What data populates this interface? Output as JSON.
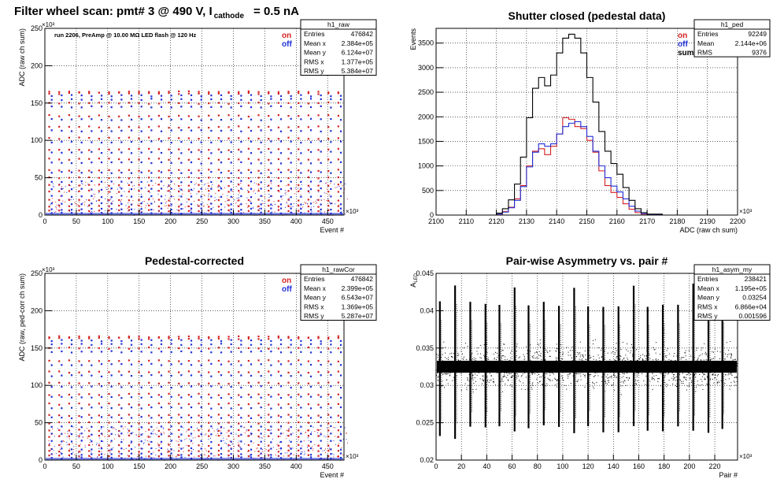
{
  "page": {
    "title": "Filter wheel scan: pmt#   3 @   490 V, I",
    "title_sub": "cathode",
    "title_tail": "= 0.5 nA"
  },
  "colors": {
    "on": "#d62020",
    "off": "#1f2fd6",
    "sum": "#000000",
    "grid": "#000000"
  },
  "chart_data": [
    {
      "id": "raw",
      "type": "scatter",
      "title": "",
      "annotation": "run 2206, PreAmp @ 10.00 MΩ LED flash @  120 Hz",
      "xlabel": "Event #",
      "ylabel": "ADC (raw ch sum)",
      "x_multiplier": "×10³",
      "y_multiplier": "×10³",
      "xlim": [
        0,
        476
      ],
      "ylim": [
        0,
        250
      ],
      "xticks": [
        0,
        50,
        100,
        150,
        200,
        250,
        300,
        350,
        400,
        450
      ],
      "yticks": [
        0,
        50,
        100,
        150,
        200,
        250
      ],
      "legend": [
        {
          "label": "on",
          "color": "#d62020"
        },
        {
          "label": "off",
          "color": "#1f2fd6"
        }
      ],
      "levels_on": [
        165,
        163,
        150,
        133,
        118,
        103,
        88,
        75,
        60,
        50,
        40,
        32,
        20,
        12,
        6
      ],
      "levels_off": [
        160,
        155,
        145,
        128,
        113,
        98,
        84,
        70,
        57,
        45,
        35,
        25,
        15,
        8,
        3
      ],
      "stats": {
        "name": "h1_raw",
        "rows": [
          [
            "Entries",
            "476842"
          ],
          [
            "Mean x",
            "2.384e+05"
          ],
          [
            "Mean y",
            "6.124e+07"
          ],
          [
            "RMS x",
            "1.377e+05"
          ],
          [
            "RMS y",
            "5.384e+07"
          ]
        ]
      }
    },
    {
      "id": "ped",
      "type": "line",
      "title": "Shutter closed (pedestal data)",
      "xlabel": "ADC (raw ch sum)",
      "ylabel": "Events",
      "x_multiplier": "×10³",
      "xlim": [
        2100,
        2200
      ],
      "ylim": [
        0,
        3800
      ],
      "xticks": [
        2100,
        2110,
        2120,
        2130,
        2140,
        2150,
        2160,
        2170,
        2180,
        2190,
        2200
      ],
      "yticks": [
        0,
        500,
        1000,
        1500,
        2000,
        2500,
        3000,
        3500
      ],
      "legend": [
        {
          "label": "on",
          "color": "#d62020"
        },
        {
          "label": "off",
          "color": "#1f2fd6"
        },
        {
          "label": "sum",
          "color": "#000000"
        }
      ],
      "series": [
        {
          "label": "on",
          "color": "#d62020",
          "x": [
            2120,
            2122,
            2124,
            2126,
            2128,
            2130,
            2132,
            2134,
            2136,
            2138,
            2140,
            2142,
            2144,
            2146,
            2148,
            2150,
            2152,
            2154,
            2156,
            2158,
            2160,
            2162,
            2164,
            2166,
            2168,
            2170,
            2175
          ],
          "y": [
            20,
            70,
            160,
            330,
            600,
            1000,
            1300,
            1350,
            1230,
            1400,
            1650,
            1980,
            1950,
            1800,
            1760,
            1520,
            1280,
            900,
            600,
            460,
            360,
            230,
            120,
            50,
            20,
            10,
            0
          ]
        },
        {
          "label": "off",
          "color": "#1f2fd6",
          "x": [
            2120,
            2122,
            2124,
            2126,
            2128,
            2130,
            2132,
            2134,
            2136,
            2138,
            2140,
            2142,
            2144,
            2146,
            2148,
            2150,
            2152,
            2154,
            2156,
            2158,
            2160,
            2162,
            2164,
            2166,
            2168,
            2170,
            2175
          ],
          "y": [
            20,
            60,
            150,
            300,
            580,
            980,
            1280,
            1450,
            1400,
            1450,
            1650,
            1800,
            1870,
            1900,
            1800,
            1600,
            1300,
            1000,
            760,
            590,
            470,
            330,
            180,
            80,
            30,
            10,
            0
          ]
        },
        {
          "label": "sum",
          "color": "#000000",
          "x": [
            2120,
            2122,
            2124,
            2126,
            2128,
            2130,
            2132,
            2134,
            2136,
            2138,
            2140,
            2142,
            2144,
            2146,
            2148,
            2150,
            2152,
            2154,
            2156,
            2158,
            2160,
            2162,
            2164,
            2166,
            2168,
            2170,
            2175
          ],
          "y": [
            40,
            130,
            310,
            630,
            1180,
            1980,
            2580,
            2800,
            2630,
            2850,
            3300,
            3600,
            3680,
            3600,
            3300,
            2800,
            2300,
            1700,
            1300,
            1050,
            830,
            560,
            300,
            130,
            50,
            20,
            0
          ]
        }
      ],
      "stats": {
        "name": "h1_ped",
        "rows": [
          [
            "Entries",
            "92249"
          ],
          [
            "Mean",
            "2.144e+06"
          ],
          [
            "RMS",
            "9376"
          ]
        ]
      }
    },
    {
      "id": "cor",
      "type": "scatter",
      "title": "Pedestal-corrected",
      "xlabel": "Event #",
      "ylabel": "ADC (raw, ped-corr ch sum)",
      "x_multiplier": "×10³",
      "y_multiplier": "×10³",
      "xlim": [
        0,
        476
      ],
      "ylim": [
        0,
        250
      ],
      "xticks": [
        0,
        50,
        100,
        150,
        200,
        250,
        300,
        350,
        400,
        450
      ],
      "yticks": [
        0,
        50,
        100,
        150,
        200,
        250
      ],
      "legend": [
        {
          "label": "on",
          "color": "#d62020"
        },
        {
          "label": "off",
          "color": "#1f2fd6"
        }
      ],
      "levels_on": [
        165,
        163,
        150,
        133,
        118,
        103,
        88,
        75,
        60,
        50,
        40,
        32,
        20,
        12,
        6
      ],
      "levels_off": [
        160,
        155,
        145,
        128,
        113,
        98,
        84,
        70,
        57,
        45,
        35,
        25,
        15,
        8,
        3
      ],
      "stats": {
        "name": "h1_rawCor",
        "rows": [
          [
            "Entries",
            "476842"
          ],
          [
            "Mean x",
            "2.399e+05"
          ],
          [
            "Mean y",
            "6.543e+07"
          ],
          [
            "RMS x",
            "1.369e+05"
          ],
          [
            "RMS y",
            "5.287e+07"
          ]
        ]
      }
    },
    {
      "id": "asym",
      "type": "scatter",
      "title": "Pair-wise Asymmetry vs. pair #",
      "xlabel": "Pair #",
      "ylabel": "A",
      "ylabel_sub": "LED",
      "x_multiplier": "×10³",
      "xlim": [
        0,
        238
      ],
      "ylim": [
        0.02,
        0.045
      ],
      "xticks": [
        0,
        20,
        40,
        60,
        80,
        100,
        120,
        140,
        160,
        180,
        200,
        220
      ],
      "yticks": [
        0.02,
        0.025,
        0.03,
        0.035,
        0.04,
        0.045
      ],
      "band_center": 0.0325,
      "band_halfwidth": 0.0008,
      "spike_pairs": [
        3,
        15,
        27,
        39,
        50,
        62,
        73,
        85,
        97,
        109,
        120,
        132,
        144,
        156,
        167,
        179,
        191,
        203,
        215,
        226
      ],
      "stats": {
        "name": "h1_asym_my",
        "rows": [
          [
            "Entries",
            "238421"
          ],
          [
            "Mean x",
            "1.195e+05"
          ],
          [
            "Mean y",
            "0.03254"
          ],
          [
            "RMS x",
            "6.866e+04"
          ],
          [
            "RMS y",
            "0.001596"
          ]
        ]
      }
    }
  ]
}
